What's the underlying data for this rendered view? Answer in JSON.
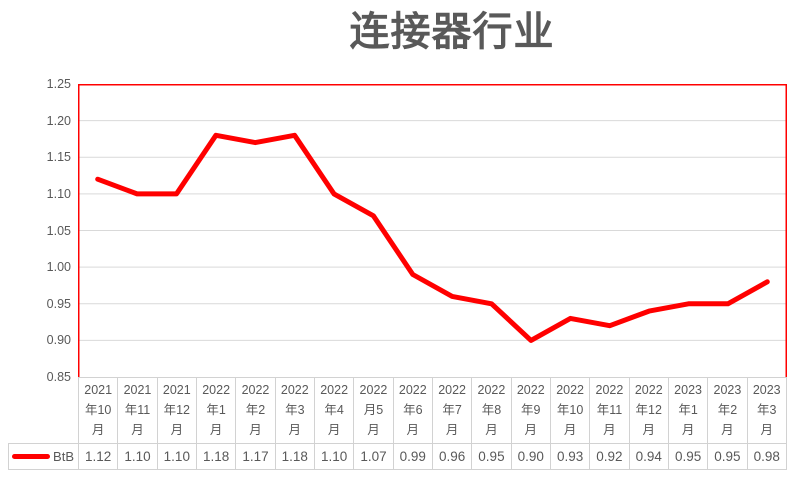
{
  "chart_data": {
    "type": "line",
    "title": "连接器行业",
    "categories": [
      "2021年10月",
      "2021年11月",
      "2021年12月",
      "2022年1月",
      "2022年2月",
      "2022年3月",
      "2022年4月",
      "2022月5月",
      "2022年6月",
      "2022年7月",
      "2022年8月",
      "2022年9月",
      "2022年10月",
      "2022年11月",
      "2022年12月",
      "2023年1月",
      "2023年2月",
      "2023年3月"
    ],
    "series": [
      {
        "name": "BtB",
        "values": [
          1.12,
          1.1,
          1.1,
          1.18,
          1.17,
          1.18,
          1.1,
          1.07,
          0.99,
          0.96,
          0.95,
          0.9,
          0.93,
          0.92,
          0.94,
          0.95,
          0.95,
          0.98
        ]
      }
    ],
    "value_labels": [
      "1.12",
      "1.10",
      "1.10",
      "1.18",
      "1.17",
      "1.18",
      "1.10",
      "1.07",
      "0.99",
      "0.96",
      "0.95",
      "0.90",
      "0.93",
      "0.92",
      "0.94",
      "0.95",
      "0.95",
      "0.98"
    ],
    "xlabel": "",
    "ylabel": "",
    "ylim": [
      0.85,
      1.25
    ],
    "ytick_step": 0.05,
    "ytick_labels": [
      "1.25",
      "1.20",
      "1.15",
      "1.10",
      "1.05",
      "1.00",
      "0.95",
      "0.90",
      "0.85"
    ],
    "grid": "horizontal",
    "legend_position": "data-table-left",
    "colors": {
      "series_line": "#ff0000",
      "plot_border": "#ff0000",
      "gridline": "#d9d9d9",
      "table_border": "#d2d2d2",
      "title_text": "#595959",
      "axis_text": "#595959"
    }
  }
}
